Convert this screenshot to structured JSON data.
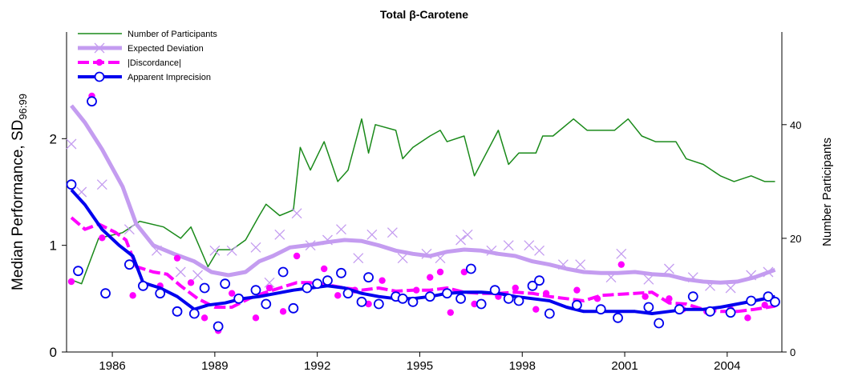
{
  "chart_data": {
    "type": "line",
    "title": "Total β-Carotene",
    "ylabel": "Median Performance, SD",
    "ylabel_subscript": "96:99",
    "y2label": "Number Participants",
    "xlim": [
      1984.66,
      2005.6
    ],
    "xticks": [
      1986,
      1989,
      1992,
      1995,
      1998,
      2001,
      2004
    ],
    "ylim": [
      0,
      3.0
    ],
    "yticks": [
      0,
      1,
      2
    ],
    "y2lim": [
      0,
      56.3
    ],
    "y2ticks": [
      0,
      20,
      40
    ],
    "legend": "upper-left",
    "series": [
      {
        "name": "Number of Participants",
        "color": "#1a8a1a",
        "axis": "y2",
        "width": 1.5,
        "dash": false,
        "x": [
          1984.8,
          1985.1,
          1985.6,
          1986.3,
          1986.8,
          1987.5,
          1988.0,
          1988.3,
          1988.8,
          1989.1,
          1989.5,
          1989.9,
          1990.3,
          1990.5,
          1990.9,
          1991.3,
          1991.5,
          1991.8,
          1992.2,
          1992.6,
          1992.9,
          1993.3,
          1993.5,
          1993.7,
          1994.3,
          1994.5,
          1994.8,
          1995.3,
          1995.6,
          1995.8,
          1996.3,
          1996.6,
          1997.3,
          1997.6,
          1997.9,
          1998.4,
          1998.6,
          1998.9,
          1999.5,
          1999.9,
          2000.7,
          2001.1,
          2001.5,
          2001.9,
          2002.5,
          2002.8,
          2003.3,
          2003.8,
          2004.2,
          2004.7,
          2005.1,
          2005.4
        ],
        "values": [
          12.7,
          12,
          20,
          21,
          23,
          22,
          20,
          22,
          15,
          18,
          18,
          19.7,
          24,
          26,
          24,
          25,
          36,
          32,
          37,
          30,
          32,
          41,
          35,
          40,
          39,
          34,
          36,
          38,
          39,
          37,
          38,
          31,
          39,
          33,
          35,
          35,
          38,
          38,
          41,
          39,
          39,
          41,
          38,
          37,
          37,
          34,
          33,
          31,
          30,
          31,
          30,
          30
        ]
      },
      {
        "name": "Expected Deviation",
        "color": "#c49cf0",
        "width": 5,
        "dash": false,
        "marker": "x",
        "x": [
          1984.8,
          1985.2,
          1985.7,
          1986.3,
          1986.7,
          1987.2,
          1987.8,
          1988.4,
          1988.9,
          1989.4,
          1989.9,
          1990.3,
          1990.7,
          1991.2,
          1991.7,
          1992.3,
          1992.8,
          1993.3,
          1993.8,
          1994.3,
          1994.8,
          1995.3,
          1995.8,
          1996.3,
          1996.8,
          1997.3,
          1997.8,
          1998.3,
          1998.8,
          1999.3,
          1999.8,
          2000.3,
          2000.8,
          2001.3,
          2001.8,
          2002.3,
          2002.8,
          2003.3,
          2003.8,
          2004.3,
          2004.8,
          2005.4
        ],
        "values": [
          2.31,
          2.15,
          1.9,
          1.55,
          1.2,
          1.0,
          0.92,
          0.85,
          0.75,
          0.72,
          0.75,
          0.85,
          0.9,
          0.98,
          1.0,
          1.03,
          1.05,
          1.04,
          1.0,
          0.95,
          0.92,
          0.9,
          0.94,
          0.96,
          0.95,
          0.92,
          0.9,
          0.85,
          0.82,
          0.78,
          0.75,
          0.74,
          0.74,
          0.75,
          0.73,
          0.72,
          0.68,
          0.66,
          0.65,
          0.66,
          0.7,
          0.77
        ],
        "points": {
          "x": [
            1984.8,
            1985.1,
            1985.7,
            1986.5,
            1987.3,
            1988.0,
            1988.5,
            1989.0,
            1989.5,
            1990.2,
            1990.6,
            1990.9,
            1991.4,
            1991.8,
            1992.3,
            1992.7,
            1993.2,
            1993.6,
            1994.2,
            1994.5,
            1995.2,
            1995.6,
            1996.2,
            1996.4,
            1997.1,
            1997.6,
            1998.2,
            1998.5,
            1999.2,
            1999.7,
            2000.6,
            2000.9,
            2001.7,
            2002.3,
            2003.0,
            2003.5,
            2004.1,
            2004.7,
            2005.2
          ],
          "values": [
            1.95,
            1.5,
            1.57,
            1.15,
            0.95,
            0.75,
            0.72,
            0.95,
            0.95,
            0.98,
            0.65,
            1.1,
            1.3,
            1.0,
            1.05,
            1.15,
            0.88,
            1.1,
            1.12,
            0.88,
            0.92,
            0.88,
            1.05,
            1.1,
            0.95,
            1.0,
            1.0,
            0.95,
            0.82,
            0.82,
            0.7,
            0.92,
            0.68,
            0.78,
            0.7,
            0.62,
            0.6,
            0.72,
            0.75
          ]
        }
      },
      {
        "name": "|Discordance|",
        "color": "#ff00ff",
        "width": 4,
        "dash": true,
        "marker": "dot",
        "x": [
          1984.8,
          1985.2,
          1985.6,
          1986.1,
          1986.4,
          1986.7,
          1987.2,
          1987.6,
          1988.0,
          1988.5,
          1989.0,
          1989.5,
          1990.0,
          1990.4,
          1990.9,
          1991.4,
          1991.8,
          1992.3,
          1992.8,
          1993.3,
          1993.8,
          1994.3,
          1994.8,
          1995.3,
          1995.8,
          1996.3,
          1996.8,
          1997.3,
          1997.8,
          1998.3,
          1998.8,
          1999.3,
          1999.8,
          2000.3,
          2000.8,
          2001.3,
          2001.8,
          2002.3,
          2002.8,
          2003.3,
          2003.8,
          2004.3,
          2004.8,
          2005.4
        ],
        "values": [
          1.26,
          1.15,
          1.2,
          1.12,
          1.05,
          0.8,
          0.75,
          0.73,
          0.62,
          0.5,
          0.42,
          0.42,
          0.5,
          0.55,
          0.6,
          0.65,
          0.65,
          0.63,
          0.6,
          0.58,
          0.6,
          0.57,
          0.58,
          0.58,
          0.6,
          0.56,
          0.55,
          0.55,
          0.56,
          0.55,
          0.52,
          0.5,
          0.48,
          0.53,
          0.54,
          0.55,
          0.56,
          0.46,
          0.45,
          0.4,
          0.38,
          0.38,
          0.4,
          0.43
        ],
        "points": {
          "x": [
            1984.8,
            1985.4,
            1985.7,
            1986.6,
            1987.4,
            1987.9,
            1988.3,
            1988.7,
            1989.1,
            1989.5,
            1990.2,
            1990.6,
            1991.0,
            1991.4,
            1992.2,
            1992.6,
            1993.1,
            1993.5,
            1993.9,
            1994.4,
            1994.9,
            1995.3,
            1995.6,
            1995.9,
            1996.3,
            1996.6,
            1997.3,
            1997.8,
            1998.4,
            1998.7,
            1999.6,
            2000.2,
            2000.9,
            2001.6,
            2002.3,
            2002.7,
            2003.4,
            2004.1,
            2004.6,
            2005.1,
            2005.4
          ],
          "values": [
            0.66,
            2.4,
            1.07,
            0.53,
            0.62,
            0.88,
            0.65,
            0.32,
            0.2,
            0.55,
            0.32,
            0.6,
            0.38,
            0.9,
            0.78,
            0.53,
            0.58,
            0.45,
            0.67,
            0.5,
            0.58,
            0.7,
            0.75,
            0.37,
            0.75,
            0.45,
            0.52,
            0.6,
            0.4,
            0.55,
            0.58,
            0.5,
            0.82,
            0.52,
            0.5,
            0.4,
            0.38,
            0.4,
            0.32,
            0.44,
            0.45
          ]
        }
      },
      {
        "name": "Apparent Imprecision",
        "color": "#0000ee",
        "width": 4,
        "dash": false,
        "marker": "circle",
        "x": [
          1984.8,
          1985.2,
          1985.7,
          1986.2,
          1986.6,
          1986.9,
          1987.4,
          1987.9,
          1988.4,
          1988.8,
          1989.3,
          1989.8,
          1990.3,
          1990.8,
          1991.3,
          1991.8,
          1992.3,
          1992.8,
          1993.3,
          1993.8,
          1994.3,
          1994.8,
          1995.3,
          1995.8,
          1996.3,
          1996.8,
          1997.3,
          1997.8,
          1998.3,
          1998.8,
          1999.3,
          1999.8,
          2000.3,
          2000.8,
          2001.3,
          2001.8,
          2002.3,
          2002.8,
          2003.3,
          2003.8,
          2004.3,
          2004.8,
          2005.4
        ],
        "values": [
          1.52,
          1.38,
          1.15,
          1.0,
          0.9,
          0.65,
          0.6,
          0.52,
          0.4,
          0.44,
          0.46,
          0.5,
          0.52,
          0.55,
          0.58,
          0.6,
          0.62,
          0.6,
          0.55,
          0.52,
          0.5,
          0.5,
          0.52,
          0.55,
          0.56,
          0.56,
          0.55,
          0.52,
          0.5,
          0.48,
          0.42,
          0.38,
          0.38,
          0.38,
          0.38,
          0.36,
          0.38,
          0.4,
          0.4,
          0.42,
          0.45,
          0.48,
          0.52
        ],
        "points": {
          "x": [
            1984.8,
            1985.0,
            1985.4,
            1985.8,
            1986.5,
            1986.9,
            1987.4,
            1987.9,
            1988.4,
            1988.7,
            1989.1,
            1989.3,
            1989.7,
            1990.2,
            1990.5,
            1991.0,
            1991.3,
            1991.7,
            1992.0,
            1992.3,
            1992.7,
            1992.9,
            1993.3,
            1993.5,
            1993.8,
            1994.3,
            1994.5,
            1994.8,
            1995.3,
            1995.8,
            1996.2,
            1996.5,
            1996.8,
            1997.2,
            1997.6,
            1997.9,
            1998.3,
            1998.5,
            1998.8,
            1999.6,
            2000.3,
            2000.8,
            2001.7,
            2002.0,
            2002.6,
            2003.0,
            2003.5,
            2004.1,
            2004.7,
            2005.2,
            2005.4
          ],
          "values": [
            1.57,
            0.76,
            2.35,
            0.55,
            0.82,
            0.62,
            0.55,
            0.38,
            0.36,
            0.6,
            0.24,
            0.64,
            0.5,
            0.58,
            0.45,
            0.75,
            0.41,
            0.6,
            0.64,
            0.67,
            0.74,
            0.55,
            0.47,
            0.7,
            0.45,
            0.52,
            0.5,
            0.47,
            0.52,
            0.55,
            0.5,
            0.78,
            0.45,
            0.58,
            0.5,
            0.48,
            0.62,
            0.67,
            0.36,
            0.44,
            0.4,
            0.32,
            0.42,
            0.27,
            0.4,
            0.52,
            0.38,
            0.37,
            0.48,
            0.52,
            0.47
          ]
        }
      }
    ]
  }
}
